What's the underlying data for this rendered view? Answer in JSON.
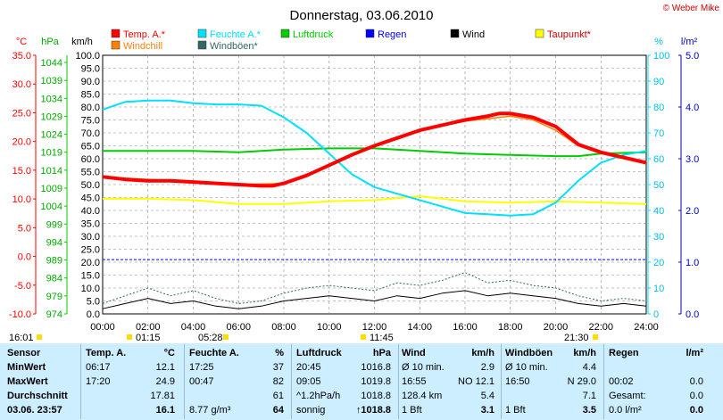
{
  "chart_data": {
    "type": "line",
    "title": "Donnerstag, 03.06.2010",
    "credit": "© Weber Mike",
    "axis_units": {
      "temperature": "°C",
      "pressure": "hPa",
      "wind": "km/h",
      "humidity": "%",
      "rain": "l/m²"
    },
    "x_ticks": [
      "00:00",
      "02:00",
      "04:00",
      "06:00",
      "08:00",
      "10:00",
      "12:00",
      "14:00",
      "16:00",
      "18:00",
      "20:00",
      "22:00",
      "24:00"
    ],
    "xlim": [
      0,
      24
    ],
    "temp_ticks": [
      "35.0",
      "30.0",
      "25.0",
      "20.0",
      "15.0",
      "10.0",
      "5.0",
      "0.0",
      "-5.0",
      "-10.0"
    ],
    "pressure_ticks": [
      "1044",
      "1039",
      "1034",
      "1029",
      "1024",
      "1019",
      "1014",
      "1009",
      "1004",
      "999",
      "994",
      "989",
      "984",
      "979",
      "974"
    ],
    "wind_ticks": [
      "100.0",
      "95.0",
      "90.0",
      "85.0",
      "80.0",
      "75.0",
      "70.0",
      "65.0",
      "60.0",
      "55.0",
      "50.0",
      "45.0",
      "40.0",
      "35.0",
      "30.0",
      "25.0",
      "20.0",
      "15.0",
      "10.0",
      "5.0",
      "0.0"
    ],
    "humidity_ticks": [
      "100",
      "90",
      "80",
      "70",
      "60",
      "50",
      "40",
      "30",
      "20",
      "10",
      "0"
    ],
    "rain_ticks": [
      "5.0",
      "4.0",
      "3.0",
      "2.0",
      "1.0",
      "0.0"
    ],
    "wind_ylim": [
      0,
      100
    ],
    "legend": [
      {
        "name": "Temp. A.*",
        "color": "#ff0000"
      },
      {
        "name": "Feuchte A.*",
        "color": "#00e0ff"
      },
      {
        "name": "Luftdruck",
        "color": "#00cc00"
      },
      {
        "name": "Regen",
        "color": "#0000ff"
      },
      {
        "name": "Wind",
        "color": "#000000"
      },
      {
        "name": "Taupunkt*",
        "color": "#ffff00"
      },
      {
        "name": "Windchill",
        "color": "#ff8000"
      },
      {
        "name": "Windböen*",
        "color": "#336666"
      }
    ],
    "series": [
      {
        "name": "Temp. A.*",
        "color": "#ff0000",
        "axis": "wind",
        "x": [
          0,
          1,
          2,
          3,
          4,
          5,
          6,
          7,
          7.5,
          8,
          9,
          10,
          11,
          12,
          13,
          14,
          15,
          16,
          17,
          17.5,
          18,
          19,
          20,
          20.5,
          21,
          22,
          23,
          24
        ],
        "y": [
          53,
          52,
          51.5,
          51.5,
          51,
          50.5,
          50,
          49.5,
          49.5,
          50.5,
          53.5,
          57.5,
          61.5,
          65,
          68,
          71,
          73,
          75,
          76.5,
          77.5,
          77.5,
          76,
          72.5,
          69,
          65.5,
          62.5,
          60.5,
          58.5
        ]
      },
      {
        "name": "Feuchte A.*",
        "color": "#00e0ff",
        "axis": "wind",
        "x": [
          0,
          1,
          2,
          3,
          4,
          5,
          6,
          7,
          8,
          9,
          10,
          11,
          12,
          13,
          14,
          15,
          16,
          17,
          18,
          19,
          20,
          21,
          22,
          23,
          24
        ],
        "y": [
          79,
          82,
          82.5,
          82.5,
          81.5,
          81,
          81,
          80.5,
          76,
          70,
          62,
          54,
          49,
          46.5,
          44,
          41.5,
          39,
          38.5,
          38,
          38.5,
          43,
          51.5,
          58.5,
          61.5,
          63
        ]
      },
      {
        "name": "Luftdruck",
        "color": "#00cc00",
        "axis": "wind",
        "x": [
          0,
          2,
          4,
          6,
          8,
          10,
          12,
          14,
          16,
          18,
          20,
          21,
          22,
          24
        ],
        "y": [
          63,
          63,
          63,
          62.5,
          63.5,
          64,
          64,
          63,
          62,
          61.5,
          61,
          61,
          62,
          62.5
        ]
      },
      {
        "name": "Taupunkt*",
        "color": "#ffff00",
        "axis": "wind",
        "x": [
          0,
          2,
          4,
          6,
          8,
          10,
          12,
          14,
          16,
          18,
          20,
          22,
          24
        ],
        "y": [
          44.5,
          44.5,
          44,
          42.5,
          42.5,
          43.5,
          44,
          45.5,
          43.5,
          43,
          43.5,
          43,
          42.5
        ]
      },
      {
        "name": "Windchill",
        "color": "#ff8000",
        "axis": "wind",
        "x": [
          0,
          4,
          6,
          8,
          10,
          12,
          14,
          16,
          17,
          18,
          19,
          20,
          21,
          22,
          24
        ],
        "y": [
          53,
          51,
          50,
          50.5,
          57.5,
          65,
          71,
          74.5,
          75.5,
          76.5,
          75,
          71,
          65,
          62,
          58
        ]
      },
      {
        "name": "Regen",
        "color": "#0000ff",
        "axis": "wind",
        "x": [
          0,
          24
        ],
        "y": [
          21,
          21
        ]
      },
      {
        "name": "Wind",
        "color": "#000000",
        "axis": "wind",
        "x": [
          0,
          1,
          2,
          3,
          4,
          5,
          6,
          7,
          8,
          9,
          10,
          11,
          12,
          13,
          14,
          15,
          16,
          17,
          18,
          19,
          20,
          21,
          22,
          23,
          24
        ],
        "y": [
          2,
          4,
          6,
          4,
          5,
          3,
          2,
          3,
          5,
          6,
          7,
          6,
          5,
          7,
          6,
          8,
          9,
          7,
          8,
          7,
          6,
          4,
          3,
          4,
          3
        ]
      },
      {
        "name": "Windböen*",
        "color": "#336666",
        "axis": "wind",
        "x": [
          0,
          1,
          2,
          3,
          4,
          5,
          6,
          7,
          8,
          9,
          10,
          11,
          12,
          13,
          14,
          15,
          16,
          17,
          18,
          19,
          20,
          21,
          22,
          23,
          24
        ],
        "y": [
          4,
          7,
          10,
          7,
          9,
          6,
          4,
          5,
          8,
          10,
          11,
          10,
          9,
          12,
          11,
          13,
          16,
          12,
          13,
          11,
          10,
          7,
          5,
          6,
          5
        ]
      }
    ],
    "markers": [
      {
        "label": "16:01",
        "sub": ""
      },
      {
        "label": "01:15",
        "sub": ""
      },
      {
        "label": "05:28",
        "sub": ""
      },
      {
        "label": "11:45",
        "sub": ""
      },
      {
        "label": "21:30",
        "sub": ""
      }
    ]
  },
  "table": {
    "headers": {
      "sensor": "Sensor",
      "temp": "Temp. A.",
      "temp_unit": "°C",
      "hum": "Feuchte A.",
      "hum_unit": "%",
      "press": "Luftdruck",
      "press_unit": "hPa",
      "wind": "Wind",
      "wind_unit": "km/h",
      "gust": "Windböen",
      "gust_unit": "km/h",
      "rain": "Regen",
      "rain_unit": "l/m²"
    },
    "rows": {
      "min_label": "MinWert",
      "max_label": "MaxWert",
      "avg_label": "Durchschnitt",
      "now_label": "03.06. 23:57"
    },
    "temp": {
      "min_t": "06:17",
      "min_v": "12.1",
      "max_t": "17:20",
      "max_v": "24.9",
      "avg_v": "17.81",
      "now_v": "16.1"
    },
    "hum": {
      "min_t": "17:25",
      "min_v": "37",
      "max_t": "00:47",
      "max_v": "82",
      "avg_v": "61",
      "now_extra": "8.77 g/m³",
      "now_v": "64"
    },
    "press": {
      "min_t": "20:45",
      "min_v": "1016.8",
      "max_t": "09:05",
      "max_v": "1019.8",
      "avg_t": "^1.2hPa/h",
      "avg_v": "1018.8",
      "now_t": "sonnig",
      "now_v": "↑1018.8"
    },
    "wind": {
      "r1_t": "Ø 10 min.",
      "r1_v": "2.9",
      "r2_t": "16:55",
      "r2_mid": "NO 12.1",
      "r3_t": "128.4 km",
      "r3_v": "5.4",
      "r4_t": "1 Bft",
      "r4_v": "3.1"
    },
    "gust": {
      "r1_t": "Ø 10 min.",
      "r1_v": "4.4",
      "r2_t": "16:50",
      "r2_mid": "N 29.0",
      "r3_v": "7.1",
      "r4_t": "1 Bft",
      "r4_v": "3.5"
    },
    "rain": {
      "r2_t": "00:02",
      "r2_v": "0.0",
      "r3_t": "Gesamt:",
      "r3_v": "0.0",
      "r4_t": "0.0 l/m²",
      "r4_v": "0.0"
    }
  }
}
